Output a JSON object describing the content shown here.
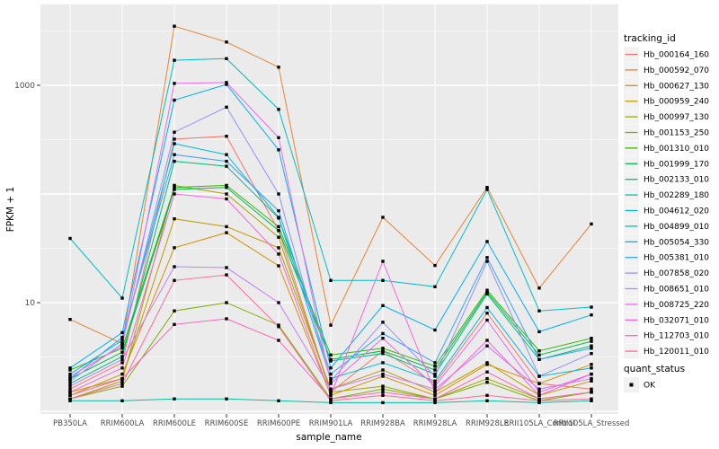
{
  "chart_data": {
    "type": "line",
    "title": "",
    "xlabel": "sample_name",
    "ylabel": "FPKM + 1",
    "y_scale": "log10",
    "y_ticks": [
      10,
      1000
    ],
    "y_minor_ticks": [
      3.162,
      31.62,
      316.2,
      3162
    ],
    "y_major_gridlines": [
      1,
      10,
      100,
      1000
    ],
    "ylim": [
      0.93,
      5200
    ],
    "grid": true,
    "panel_bg": "#EBEBEB",
    "grid_color": "#FFFFFF",
    "tick_color": "#333333",
    "point_color": "#000000",
    "legend_key_bg": "#F2F2F2",
    "categories": [
      "PB350LA",
      "RRIM600LA",
      "RRIM600LE",
      "RRIM600SE",
      "RRIM600PE",
      "RRIM901LA",
      "RRIM928BA",
      "RRIM928LA",
      "RRIM928LE",
      "RRII105LA_Control",
      "RRII105LA_Stressed"
    ],
    "legend": {
      "title": "tracking_id",
      "position": "right"
    },
    "legend2": {
      "title": "quant_status",
      "items": [
        {
          "label": "OK",
          "marker": "black-square"
        }
      ]
    },
    "series": [
      {
        "name": "Hb_000164_160",
        "color": "#F8766D",
        "values": [
          1.6,
          2.8,
          320,
          340,
          46,
          1.5,
          3.6,
          1.8,
          8,
          1.8,
          1.6
        ]
      },
      {
        "name": "Hb_000592_070",
        "color": "#EA8331",
        "values": [
          7,
          4.2,
          3500,
          2500,
          1470,
          6.2,
          61,
          22,
          115,
          13.6,
          53
        ]
      },
      {
        "name": "Hb_000627_130",
        "color": "#D89000",
        "values": [
          1.4,
          2.2,
          32,
          44,
          21.8,
          1.4,
          2.1,
          1.4,
          2.7,
          1.8,
          2.7
        ]
      },
      {
        "name": "Hb_000959_240",
        "color": "#C09B00",
        "values": [
          1.5,
          2.0,
          59,
          50,
          32,
          1.6,
          2.4,
          1.5,
          2.8,
          1.4,
          1.9
        ]
      },
      {
        "name": "Hb_000997_130",
        "color": "#A3A500",
        "values": [
          1.3,
          1.9,
          120,
          100,
          40,
          1.5,
          1.7,
          1.3,
          2.0,
          1.3,
          1.5
        ]
      },
      {
        "name": "Hb_001153_250",
        "color": "#7CAE00",
        "values": [
          1.3,
          1.7,
          8.4,
          10,
          6.2,
          1.3,
          1.6,
          1.3,
          1.85,
          1.25,
          1.5
        ]
      },
      {
        "name": "Hb_001310_010",
        "color": "#39B600",
        "values": [
          2.4,
          3.8,
          115,
          120,
          50,
          3.3,
          3.8,
          2.6,
          13,
          3.6,
          4.7
        ]
      },
      {
        "name": "Hb_001999_170",
        "color": "#00BB4E",
        "values": [
          2.0,
          3.5,
          110,
          115,
          46,
          3.0,
          3.6,
          2.4,
          12.5,
          3.3,
          4.4
        ]
      },
      {
        "name": "Hb_002133_010",
        "color": "#00BF7D",
        "values": [
          1.8,
          3.2,
          200,
          180,
          60,
          2.9,
          3.4,
          2.2,
          12,
          3.0,
          4.0
        ]
      },
      {
        "name": "Hb_002289_180",
        "color": "#00C1A3",
        "values": [
          1.25,
          1.25,
          1.3,
          1.3,
          1.25,
          1.2,
          1.2,
          1.2,
          1.25,
          1.2,
          1.25
        ]
      },
      {
        "name": "Hb_004612_020",
        "color": "#00BFC4",
        "values": [
          39,
          11,
          1700,
          1760,
          600,
          16,
          16,
          14,
          110,
          8.4,
          9.1
        ]
      },
      {
        "name": "Hb_004899_010",
        "color": "#00BAE0",
        "values": [
          2.2,
          4.5,
          290,
          230,
          61,
          2.0,
          2.8,
          1.9,
          9,
          2.1,
          2.5
        ]
      },
      {
        "name": "Hb_005054_330",
        "color": "#00B0F6",
        "values": [
          2.5,
          5.3,
          730,
          1020,
          255,
          2.5,
          9.4,
          5.6,
          36.5,
          5.4,
          7.7
        ]
      },
      {
        "name": "Hb_005381_010",
        "color": "#35A2FF",
        "values": [
          2.0,
          4.8,
          230,
          200,
          70,
          2.2,
          5.2,
          2.8,
          26,
          3.0,
          3.8
        ]
      },
      {
        "name": "Hb_007858_020",
        "color": "#9590FF",
        "values": [
          1.9,
          4.2,
          370,
          630,
          100,
          1.9,
          6.6,
          2.1,
          24,
          2.1,
          3.4
        ]
      },
      {
        "name": "Hb_008651_010",
        "color": "#C77CFF",
        "values": [
          1.7,
          3.0,
          21.4,
          21,
          10,
          1.6,
          2.2,
          1.6,
          4.0,
          1.6,
          2.0
        ]
      },
      {
        "name": "Hb_008725_220",
        "color": "#E76BF3",
        "values": [
          2.1,
          4.0,
          1040,
          1060,
          330,
          1.8,
          4.7,
          1.7,
          6.9,
          1.5,
          2.2
        ]
      },
      {
        "name": "Hb_032071_010",
        "color": "#FA62DB",
        "values": [
          1.5,
          2.5,
          100,
          90,
          28,
          1.4,
          24,
          1.5,
          4.5,
          1.4,
          2.2
        ]
      },
      {
        "name": "Hb_112703_010",
        "color": "#FF62BC",
        "values": [
          1.4,
          2.0,
          6.3,
          7.1,
          4.5,
          1.3,
          1.5,
          1.3,
          2.3,
          1.3,
          1.5
        ]
      },
      {
        "name": "Hb_120011_010",
        "color": "#FF6A98",
        "values": [
          1.3,
          1.8,
          16,
          18,
          6.0,
          1.25,
          1.4,
          1.25,
          1.4,
          1.25,
          1.3
        ]
      }
    ]
  }
}
